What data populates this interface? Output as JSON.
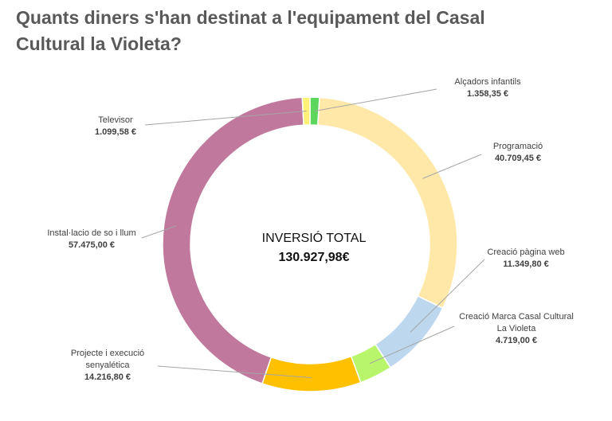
{
  "title_line1": "Quants diners s'han destinat a l'equipament del Casal",
  "title_line2": "Cultural la Violeta?",
  "chart_data": {
    "type": "pie",
    "variant": "donut",
    "center_label": "INVERSIÓ TOTAL",
    "center_value": "130.927,98€",
    "slices": [
      {
        "name": "Alçadors infantils",
        "value": 1358.35,
        "value_label": "1.358,35 €",
        "color": "#5CD65C"
      },
      {
        "name": "Programació",
        "value": 40709.45,
        "value_label": "40.709,45 €",
        "color": "#FFE8A8"
      },
      {
        "name": "Creació pàgina web",
        "value": 11349.8,
        "value_label": "11.349,80 €",
        "color": "#BDD7EE"
      },
      {
        "name_lines": [
          "Creació Marca Casal Cultural",
          "La Violeta"
        ],
        "value": 4719.0,
        "value_label": "4.719,00 €",
        "color": "#B8F56A"
      },
      {
        "name_lines": [
          "Projecte i execució",
          "senyalética"
        ],
        "value": 14216.8,
        "value_label": "14.216,80 €",
        "color": "#FFC000"
      },
      {
        "name": "Instal·lacio de so i llum",
        "value": 57475.0,
        "value_label": "57.475,00 €",
        "color": "#C0789C"
      },
      {
        "name": "Televisor",
        "value": 1099.58,
        "value_label": "1.099,58 €",
        "color": "#FFF176"
      }
    ]
  }
}
